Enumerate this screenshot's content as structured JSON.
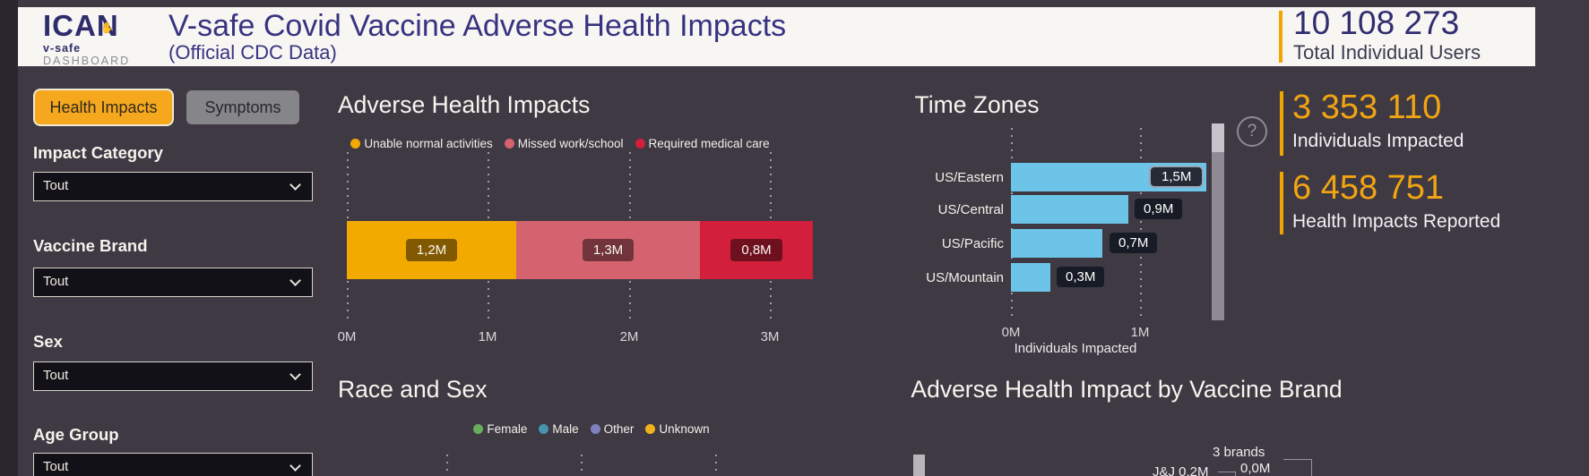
{
  "header": {
    "logo_line1": "ICAN",
    "logo_hand": "✋",
    "logo_line2_bold": "v-safe",
    "logo_line2_rest": "DASHBOARD",
    "title": "V-safe Covid Vaccine Adverse Health Impacts",
    "subtitle": "(Official CDC Data)",
    "total_users_value": "10 108 273",
    "total_users_label": "Total Individual Users",
    "accent_color": "#F0A500"
  },
  "sidebar": {
    "tabs": [
      {
        "label": "Health Impacts",
        "active": true
      },
      {
        "label": "Symptoms",
        "active": false
      }
    ],
    "filters": [
      {
        "label": "Impact Category",
        "value": "Tout"
      },
      {
        "label": "Vaccine Brand",
        "value": "Tout"
      },
      {
        "label": "Sex",
        "value": "Tout"
      },
      {
        "label": "Age Group",
        "value": "Tout"
      }
    ]
  },
  "kpis": [
    {
      "value": "3 353 110",
      "label": "Individuals Impacted"
    },
    {
      "value": "6 458 751",
      "label": "Health Impacts Reported"
    }
  ],
  "help": {
    "glyph": "?"
  },
  "chart_data": [
    {
      "type": "bar",
      "subtype": "stacked-horizontal",
      "title": "Adverse Health Impacts",
      "series": [
        {
          "name": "Unable normal activities",
          "value": 1.2,
          "value_label": "1,2M",
          "color": "#F2A900"
        },
        {
          "name": "Missed work/school",
          "value": 1.3,
          "value_label": "1,3M",
          "color": "#D4636F"
        },
        {
          "name": "Required medical care",
          "value": 0.8,
          "value_label": "0,8M",
          "color": "#D21F3C"
        }
      ],
      "x_ticks": [
        "0M",
        "1M",
        "2M",
        "3M"
      ],
      "xlim": [
        0,
        3.3
      ],
      "grid": "dotted-vertical",
      "legend_position": "top"
    },
    {
      "type": "bar",
      "subtype": "horizontal",
      "title": "Time Zones",
      "categories": [
        "US/Eastern",
        "US/Central",
        "US/Pacific",
        "US/Mountain"
      ],
      "values": [
        1.5,
        0.9,
        0.7,
        0.3
      ],
      "value_labels": [
        "1,5M",
        "0,9M",
        "0,7M",
        "0,3M"
      ],
      "bar_color": "#6CC4E8",
      "x_ticks": [
        "0M",
        "1M"
      ],
      "xlabel": "Individuals Impacted",
      "xlim": [
        0,
        1.55
      ],
      "grid": "dotted-vertical"
    },
    {
      "type": "bar",
      "subtype": "grouped",
      "title": "Race and Sex",
      "legend": [
        {
          "name": "Female",
          "color": "#67AD5B"
        },
        {
          "name": "Male",
          "color": "#4695AC"
        },
        {
          "name": "Other",
          "color": "#7D82BE"
        },
        {
          "name": "Unknown",
          "color": "#F2B21C"
        }
      ]
    },
    {
      "type": "pie",
      "title": "Adverse Health Impact by Vaccine Brand",
      "visible_labels": [
        "3 brands",
        "0,0M",
        "J&J 0,2M"
      ]
    }
  ]
}
